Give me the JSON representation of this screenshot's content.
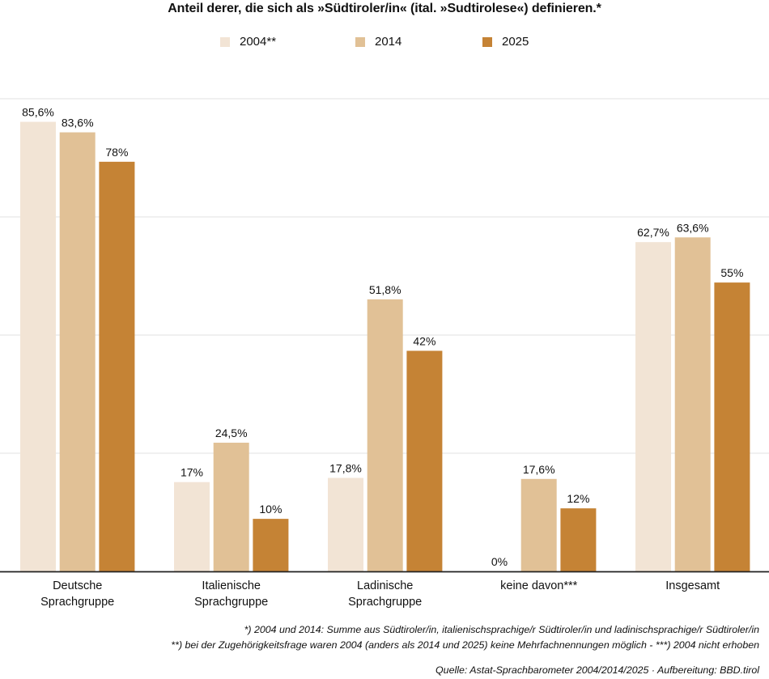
{
  "chart_data": {
    "type": "bar",
    "title": "Anteil derer, die sich als »Südtiroler/in« (ital. »Sudtirolese«) definieren.*",
    "categories": [
      [
        "Deutsche",
        "Sprachgruppe"
      ],
      [
        "Italienische",
        "Sprachgruppe"
      ],
      [
        "Ladinische",
        "Sprachgruppe"
      ],
      [
        "keine davon***"
      ],
      [
        "Insgesamt"
      ]
    ],
    "series": [
      {
        "name": "2004**",
        "color": "#f2e4d5",
        "values": [
          85.6,
          17,
          17.8,
          0,
          62.7
        ],
        "labels": [
          "85,6%",
          "17%",
          "17,8%",
          "0%",
          "62,7%"
        ]
      },
      {
        "name": "2014",
        "color": "#e1c196",
        "values": [
          83.6,
          24.5,
          51.8,
          17.6,
          63.6
        ],
        "labels": [
          "83,6%",
          "24,5%",
          "51,8%",
          "17,6%",
          "63,6%"
        ]
      },
      {
        "name": "2025",
        "color": "#c58335",
        "values": [
          78,
          10,
          42,
          12,
          55
        ],
        "labels": [
          "78%",
          "10%",
          "42%",
          "12%",
          "55%"
        ]
      }
    ],
    "xlabel": "",
    "ylabel": "",
    "ylim": [
      0,
      90
    ],
    "gridlines": [
      22.5,
      45,
      67.5,
      90
    ],
    "grid": true,
    "legend_position": "top-center",
    "unit": "%"
  },
  "footnotes": [
    "*) 2004 und 2014: Summe aus Südtiroler/in, italienischsprachige/r Südtiroler/in und ladinischsprachige/r Südtiroler/in",
    "**) bei der Zugehörigkeitsfrage waren 2004 (anders als 2014 und 2025) keine Mehrfachnennungen möglich - ***) 2004 nicht erhoben"
  ],
  "source": "Quelle: Astat-Sprachbarometer 2004/2014/2025 · Aufbereitung: BBD.tirol"
}
